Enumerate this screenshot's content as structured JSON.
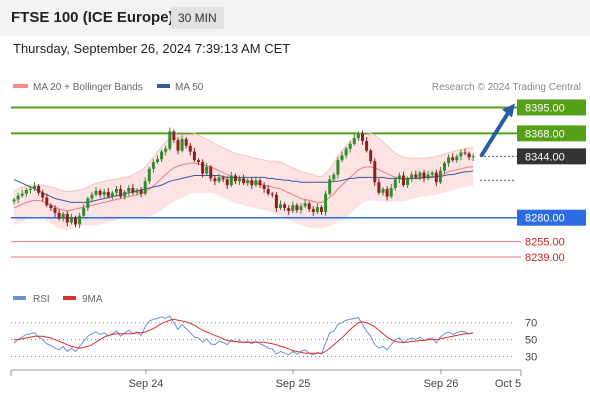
{
  "header": {
    "title": "FTSE 100 (ICE Europe)",
    "interval": "30 MIN"
  },
  "date": "Thursday, September 26, 2024 7:39:13 AM CET",
  "legend": {
    "bb": "MA 20 + Bollinger Bands",
    "ma50": "MA 50",
    "credit": "Research © 2024 Trading Central"
  },
  "rsi_legend": {
    "rsi": "RSI",
    "ma": "9MA"
  },
  "colors": {
    "resistance": "#56a018",
    "support": "#2c6be0",
    "minor": "#e08080",
    "last": "#333333",
    "bb_fill": "#fde3e3",
    "bb_line": "#ef7b7b",
    "ma50": "#3a5a9c",
    "up": "#2e8b2e",
    "down": "#8b2020",
    "rsi": "#6d8fd6",
    "rsi_ma": "#e03030",
    "arrow": "#2a5ca6"
  },
  "chart_data": {
    "type": "candlestick",
    "x_ticks": [
      "Sep 24",
      "Sep 25",
      "Sep 26",
      "Oct 5"
    ],
    "ylim": [
      8215,
      8408
    ],
    "levels": [
      {
        "value": 8395.0,
        "label": "8395.00",
        "kind": "resistance"
      },
      {
        "value": 8368.0,
        "label": "8368.00",
        "kind": "resistance"
      },
      {
        "value": 8344.0,
        "label": "8344.00",
        "kind": "last"
      },
      {
        "value": 8280.0,
        "label": "8280.00",
        "kind": "support"
      },
      {
        "value": 8255.0,
        "label": "8255.00",
        "kind": "minor"
      },
      {
        "value": 8239.0,
        "label": "8239.00",
        "kind": "minor"
      }
    ],
    "closes": [
      8299,
      8303,
      8305,
      8309,
      8310,
      8313,
      8306,
      8301,
      8293,
      8290,
      8285,
      8279,
      8284,
      8275,
      8280,
      8273,
      8282,
      8290,
      8300,
      8304,
      8308,
      8304,
      8307,
      8302,
      8306,
      8310,
      8302,
      8307,
      8311,
      8306,
      8309,
      8305,
      8318,
      8331,
      8338,
      8341,
      8349,
      8352,
      8370,
      8361,
      8350,
      8362,
      8355,
      8349,
      8340,
      8338,
      8326,
      8333,
      8321,
      8318,
      8322,
      8320,
      8314,
      8324,
      8318,
      8321,
      8316,
      8319,
      8314,
      8319,
      8314,
      8310,
      8305,
      8304,
      8290,
      8294,
      8290,
      8287,
      8293,
      8288,
      8292,
      8295,
      8289,
      8286,
      8291,
      8286,
      8305,
      8320,
      8325,
      8340,
      8345,
      8352,
      8357,
      8363,
      8368,
      8360,
      8350,
      8339,
      8317,
      8306,
      8310,
      8302,
      8311,
      8320,
      8324,
      8314,
      8321,
      8325,
      8322,
      8327,
      8321,
      8325,
      8327,
      8317,
      8329,
      8337,
      8343,
      8340,
      8344,
      8348,
      8347,
      8343,
      8344
    ],
    "ma20": [
      8290,
      8292,
      8294,
      8296,
      8297,
      8298,
      8298,
      8297,
      8295,
      8293,
      8291,
      8289,
      8288,
      8287,
      8288,
      8289,
      8290,
      8291,
      8292,
      8293,
      8294,
      8295,
      8296,
      8297,
      8298,
      8299,
      8300,
      8301,
      8302,
      8303,
      8304,
      8305,
      8307,
      8310,
      8313,
      8317,
      8321,
      8325,
      8329,
      8332,
      8334,
      8335,
      8336,
      8337,
      8337,
      8336,
      8335,
      8334,
      8333,
      8331,
      8329,
      8327,
      8325,
      8323,
      8321,
      8320,
      8319,
      8318,
      8317,
      8316,
      8315,
      8314,
      8313,
      8312,
      8311,
      8310,
      8308,
      8306,
      8304,
      8302,
      8300,
      8299,
      8298,
      8297,
      8296,
      8296,
      8298,
      8301,
      8305,
      8310,
      8314,
      8318,
      8322,
      8326,
      8330,
      8332,
      8333,
      8333,
      8332,
      8330,
      8328,
      8326,
      8324,
      8322,
      8321,
      8320,
      8320,
      8321,
      8321,
      8322,
      8322,
      8323,
      8323,
      8324,
      8325,
      8326,
      8328,
      8329,
      8330,
      8331,
      8332,
      8333,
      8333
    ],
    "bb_width": [
      18,
      18,
      18,
      17,
      17,
      16,
      16,
      17,
      18,
      19,
      20,
      20,
      20,
      20,
      20,
      19,
      19,
      19,
      20,
      21,
      22,
      22,
      22,
      22,
      22,
      21,
      21,
      21,
      21,
      22,
      23,
      24,
      26,
      28,
      30,
      32,
      33,
      34,
      35,
      35,
      35,
      34,
      33,
      32,
      31,
      30,
      29,
      28,
      27,
      26,
      26,
      26,
      26,
      26,
      26,
      26,
      26,
      26,
      26,
      26,
      26,
      26,
      26,
      27,
      28,
      28,
      28,
      28,
      28,
      28,
      28,
      28,
      28,
      28,
      27,
      27,
      28,
      30,
      32,
      34,
      36,
      37,
      38,
      38,
      38,
      37,
      36,
      35,
      34,
      33,
      31,
      29,
      27,
      25,
      24,
      23,
      22,
      21,
      21,
      20,
      20,
      20,
      20,
      20,
      20,
      20,
      20,
      20,
      20,
      20,
      20,
      20,
      20
    ],
    "ma50": [
      8320,
      8318,
      8316,
      8314,
      8312,
      8310,
      8308,
      8306,
      8304,
      8302,
      8300,
      8299,
      8298,
      8297,
      8296,
      8296,
      8296,
      8296,
      8296,
      8297,
      8298,
      8299,
      8300,
      8301,
      8302,
      8303,
      8304,
      8305,
      8306,
      8307,
      8308,
      8309,
      8310,
      8311,
      8312,
      8313,
      8314,
      8316,
      8318,
      8319,
      8320,
      8321,
      8322,
      8323,
      8324,
      8324,
      8324,
      8324,
      8324,
      8324,
      8324,
      8323,
      8322,
      8322,
      8322,
      8322,
      8322,
      8322,
      8322,
      8322,
      8322,
      8322,
      8321,
      8321,
      8320,
      8320,
      8319,
      8319,
      8318,
      8318,
      8317,
      8317,
      8317,
      8317,
      8317,
      8317,
      8317,
      8317,
      8318,
      8318,
      8319,
      8320,
      8321,
      8321,
      8322,
      8322,
      8322,
      8322,
      8322,
      8322,
      8322,
      8321,
      8321,
      8321,
      8321,
      8321,
      8321,
      8321,
      8321,
      8321,
      8322,
      8322,
      8322,
      8323,
      8323,
      8324,
      8325,
      8325,
      8326,
      8327,
      8328,
      8328,
      8329
    ],
    "rsi": {
      "ylim": [
        20,
        85
      ],
      "ticks": [
        "70",
        "50",
        "30"
      ],
      "values": [
        46,
        50,
        53,
        56,
        57,
        58,
        53,
        50,
        45,
        43,
        40,
        38,
        42,
        36,
        40,
        36,
        42,
        48,
        54,
        57,
        59,
        56,
        58,
        54,
        57,
        60,
        54,
        58,
        61,
        57,
        59,
        55,
        65,
        72,
        74,
        75,
        77,
        75,
        78,
        70,
        62,
        68,
        63,
        58,
        53,
        52,
        47,
        51,
        45,
        44,
        48,
        47,
        44,
        50,
        47,
        49,
        46,
        48,
        45,
        48,
        45,
        43,
        40,
        39,
        33,
        36,
        34,
        32,
        36,
        33,
        36,
        38,
        34,
        32,
        35,
        33,
        46,
        58,
        60,
        68,
        70,
        73,
        74,
        75,
        76,
        68,
        60,
        54,
        44,
        40,
        42,
        38,
        44,
        50,
        52,
        46,
        50,
        52,
        50,
        53,
        49,
        51,
        52,
        46,
        53,
        57,
        59,
        56,
        58,
        60,
        59,
        57,
        58
      ],
      "ma9": [
        50,
        50,
        51,
        52,
        53,
        54,
        54,
        54,
        53,
        52,
        50,
        48,
        46,
        44,
        42,
        41,
        40,
        41,
        42,
        44,
        47,
        50,
        53,
        55,
        56,
        57,
        57,
        57,
        57,
        57,
        58,
        58,
        59,
        61,
        63,
        66,
        69,
        71,
        73,
        74,
        73,
        72,
        71,
        69,
        67,
        64,
        61,
        59,
        57,
        55,
        53,
        51,
        49,
        48,
        48,
        47,
        47,
        47,
        47,
        47,
        47,
        47,
        46,
        45,
        44,
        42,
        41,
        39,
        37,
        36,
        35,
        34,
        34,
        34,
        34,
        34,
        36,
        40,
        44,
        48,
        52,
        57,
        62,
        66,
        70,
        71,
        70,
        68,
        65,
        61,
        57,
        53,
        50,
        48,
        47,
        47,
        47,
        48,
        48,
        49,
        49,
        50,
        50,
        50,
        51,
        52,
        53,
        54,
        55,
        56,
        57,
        57,
        58
      ]
    }
  },
  "arrow_target": 8395.0
}
